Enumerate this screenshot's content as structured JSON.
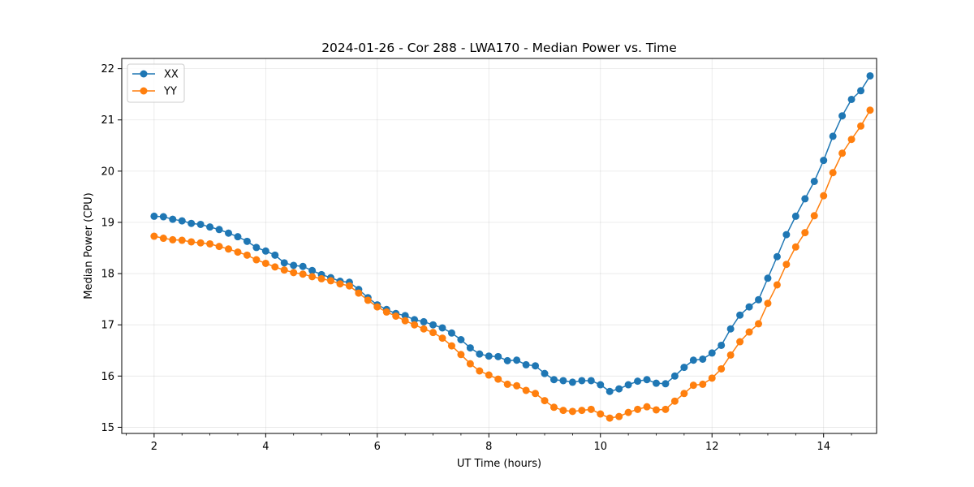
{
  "chart_data": {
    "type": "line",
    "title": "2024-01-26 - Cor 288 - LWA170 - Median Power vs. Time",
    "xlabel": "UT Time (hours)",
    "ylabel": "Median Power (CPU)",
    "xlim": [
      1.42,
      14.95
    ],
    "ylim": [
      14.88,
      22.2
    ],
    "xticks": [
      2,
      4,
      6,
      8,
      10,
      12,
      14
    ],
    "xtick_labels": [
      "2",
      "4",
      "6",
      "8",
      "10",
      "12",
      "14"
    ],
    "yticks": [
      15,
      16,
      17,
      18,
      19,
      20,
      21,
      22
    ],
    "ytick_labels": [
      "15",
      "16",
      "17",
      "18",
      "19",
      "20",
      "21",
      "22"
    ],
    "grid": true,
    "legend_position": "upper-left",
    "x": [
      2.0,
      2.1667,
      2.3333,
      2.5,
      2.6667,
      2.8333,
      3.0,
      3.1667,
      3.3333,
      3.5,
      3.6667,
      3.8333,
      4.0,
      4.1667,
      4.3333,
      4.5,
      4.6667,
      4.8333,
      5.0,
      5.1667,
      5.3333,
      5.5,
      5.6667,
      5.8333,
      6.0,
      6.1667,
      6.3333,
      6.5,
      6.6667,
      6.8333,
      7.0,
      7.1667,
      7.3333,
      7.5,
      7.6667,
      7.8333,
      8.0,
      8.1667,
      8.3333,
      8.5,
      8.6667,
      8.8333,
      9.0,
      9.1667,
      9.3333,
      9.5,
      9.6667,
      9.8333,
      10.0,
      10.1667,
      10.3333,
      10.5,
      10.6667,
      10.8333,
      11.0,
      11.1667,
      11.3333,
      11.5,
      11.6667,
      11.8333,
      12.0,
      12.1667,
      12.3333,
      12.5,
      12.6667,
      12.8333,
      13.0,
      13.1667,
      13.3333,
      13.5,
      13.6667,
      13.8333,
      14.0,
      14.1667,
      14.3333,
      14.5,
      14.6667,
      14.8333
    ],
    "series": [
      {
        "name": "XX",
        "color": "#1f77b4",
        "values": [
          19.12,
          19.11,
          19.06,
          19.03,
          18.98,
          18.96,
          18.91,
          18.86,
          18.79,
          18.72,
          18.63,
          18.51,
          18.44,
          18.36,
          18.21,
          18.16,
          18.14,
          18.06,
          17.98,
          17.92,
          17.85,
          17.83,
          17.69,
          17.53,
          17.39,
          17.3,
          17.22,
          17.18,
          17.1,
          17.06,
          17.0,
          16.94,
          16.84,
          16.71,
          16.55,
          16.43,
          16.39,
          16.38,
          16.3,
          16.31,
          16.22,
          16.2,
          16.05,
          15.93,
          15.91,
          15.88,
          15.91,
          15.91,
          15.83,
          15.7,
          15.75,
          15.83,
          15.9,
          15.93,
          15.86,
          15.85,
          16.0,
          16.17,
          16.31,
          16.33,
          16.45,
          16.6,
          16.92,
          17.19,
          17.35,
          17.49,
          17.91,
          18.33,
          18.76,
          19.12,
          19.46,
          19.8,
          20.21,
          20.68,
          21.08,
          21.4,
          21.57,
          21.86
        ]
      },
      {
        "name": "YY",
        "color": "#ff7f0e",
        "values": [
          18.73,
          18.69,
          18.66,
          18.65,
          18.62,
          18.6,
          18.58,
          18.53,
          18.48,
          18.42,
          18.36,
          18.27,
          18.2,
          18.13,
          18.07,
          18.02,
          17.99,
          17.94,
          17.9,
          17.86,
          17.8,
          17.76,
          17.62,
          17.48,
          17.35,
          17.25,
          17.17,
          17.08,
          17.0,
          16.92,
          16.85,
          16.74,
          16.59,
          16.42,
          16.24,
          16.1,
          16.02,
          15.94,
          15.84,
          15.81,
          15.72,
          15.66,
          15.52,
          15.39,
          15.33,
          15.31,
          15.33,
          15.35,
          15.26,
          15.18,
          15.21,
          15.29,
          15.35,
          15.4,
          15.34,
          15.35,
          15.51,
          15.66,
          15.82,
          15.84,
          15.96,
          16.14,
          16.41,
          16.67,
          16.86,
          17.02,
          17.42,
          17.78,
          18.18,
          18.52,
          18.8,
          19.13,
          19.52,
          19.97,
          20.35,
          20.62,
          20.88,
          21.19
        ]
      }
    ]
  }
}
